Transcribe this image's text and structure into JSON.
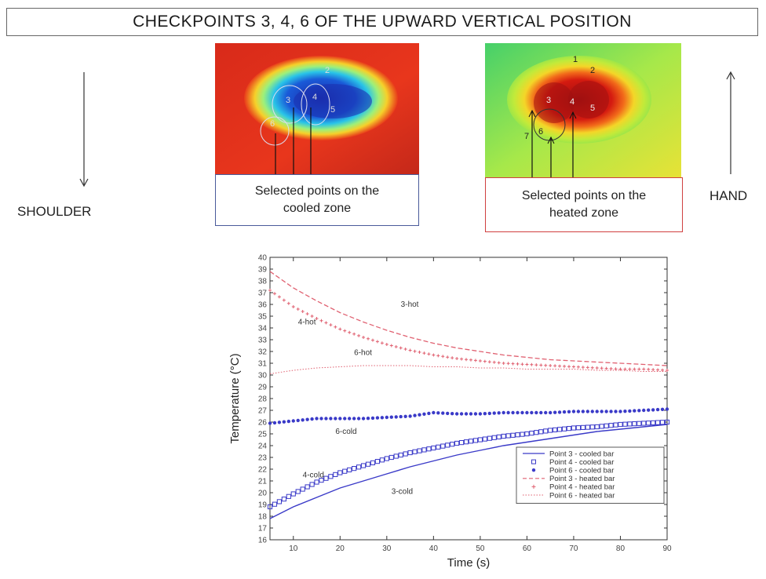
{
  "title": "CHECKPOINTS  3, 4, 6   OF THE UPWARD  VERTICAL POSITION",
  "left_side": {
    "label": "SHOULDER",
    "arrow": "down-arrow"
  },
  "right_side": {
    "label": "HAND",
    "arrow": "up-arrow"
  },
  "cooled_map": {
    "caption_line1": "Selected points on the",
    "caption_line2": "cooled zone",
    "point_labels": [
      "3",
      "4",
      "5",
      "6",
      "2"
    ]
  },
  "heated_map": {
    "caption_line1": "Selected points on the",
    "caption_line2": "heated zone",
    "point_labels": [
      "1",
      "2",
      "3",
      "4",
      "5",
      "6",
      "7"
    ]
  },
  "chart_data": {
    "type": "line",
    "xlabel": "Time (s)",
    "ylabel": "Temperature (°C)",
    "xlim": [
      5,
      90
    ],
    "ylim": [
      16,
      40
    ],
    "xticks": [
      10,
      20,
      30,
      40,
      50,
      60,
      70,
      80,
      90
    ],
    "yticks": [
      16,
      17,
      18,
      19,
      20,
      21,
      22,
      23,
      24,
      25,
      26,
      27,
      28,
      29,
      30,
      31,
      32,
      33,
      34,
      35,
      36,
      37,
      38,
      39,
      40
    ],
    "legend_position": "bottom-right",
    "colors": {
      "cooled": "#3a3ac8",
      "heated": "#e06070"
    },
    "x": [
      5,
      10,
      15,
      20,
      25,
      30,
      35,
      40,
      45,
      50,
      55,
      60,
      65,
      70,
      75,
      80,
      85,
      90
    ],
    "series": [
      {
        "name": "Point 3 - cooled bar",
        "style": "solid",
        "color": "#3a3ac8",
        "values": [
          17.8,
          18.8,
          19.6,
          20.4,
          21.0,
          21.6,
          22.2,
          22.7,
          23.2,
          23.6,
          24.0,
          24.3,
          24.6,
          24.9,
          25.2,
          25.4,
          25.6,
          25.8
        ]
      },
      {
        "name": "Point 4 - cooled bar",
        "style": "open-square",
        "color": "#3a3ac8",
        "values": [
          18.8,
          19.9,
          20.9,
          21.7,
          22.3,
          22.9,
          23.4,
          23.8,
          24.2,
          24.5,
          24.8,
          25.0,
          25.3,
          25.5,
          25.6,
          25.8,
          25.9,
          26.0
        ]
      },
      {
        "name": "Point 6 - cooled bar",
        "style": "filled-star",
        "color": "#3a3ac8",
        "values": [
          25.9,
          26.1,
          26.3,
          26.3,
          26.3,
          26.4,
          26.5,
          26.8,
          26.7,
          26.7,
          26.8,
          26.8,
          26.8,
          26.9,
          26.9,
          26.9,
          27.0,
          27.1
        ]
      },
      {
        "name": "Point 3 - heated bar",
        "style": "dashed",
        "color": "#e06070",
        "values": [
          38.8,
          37.4,
          36.3,
          35.3,
          34.5,
          33.8,
          33.2,
          32.7,
          32.3,
          32.0,
          31.7,
          31.5,
          31.3,
          31.2,
          31.1,
          31.0,
          30.9,
          30.8
        ]
      },
      {
        "name": "Point 4 - heated bar",
        "style": "plus",
        "color": "#e06070",
        "values": [
          37.2,
          35.8,
          34.8,
          33.9,
          33.2,
          32.6,
          32.1,
          31.7,
          31.4,
          31.2,
          31.0,
          30.9,
          30.8,
          30.7,
          30.6,
          30.5,
          30.5,
          30.4
        ]
      },
      {
        "name": "Point 6 - heated bar",
        "style": "dotted",
        "color": "#e06070",
        "values": [
          30.1,
          30.4,
          30.6,
          30.7,
          30.8,
          30.8,
          30.8,
          30.7,
          30.7,
          30.6,
          30.6,
          30.5,
          30.5,
          30.5,
          30.4,
          30.4,
          30.3,
          30.3
        ]
      }
    ],
    "annotations": [
      {
        "text": "3-hot",
        "x": 33,
        "y": 35.8
      },
      {
        "text": "4-hot",
        "x": 11,
        "y": 34.3
      },
      {
        "text": "6-hot",
        "x": 23,
        "y": 31.7
      },
      {
        "text": "6-cold",
        "x": 19,
        "y": 25.0
      },
      {
        "text": "4-cold",
        "x": 12,
        "y": 21.3
      },
      {
        "text": "3-cold",
        "x": 31,
        "y": 19.9
      }
    ]
  }
}
